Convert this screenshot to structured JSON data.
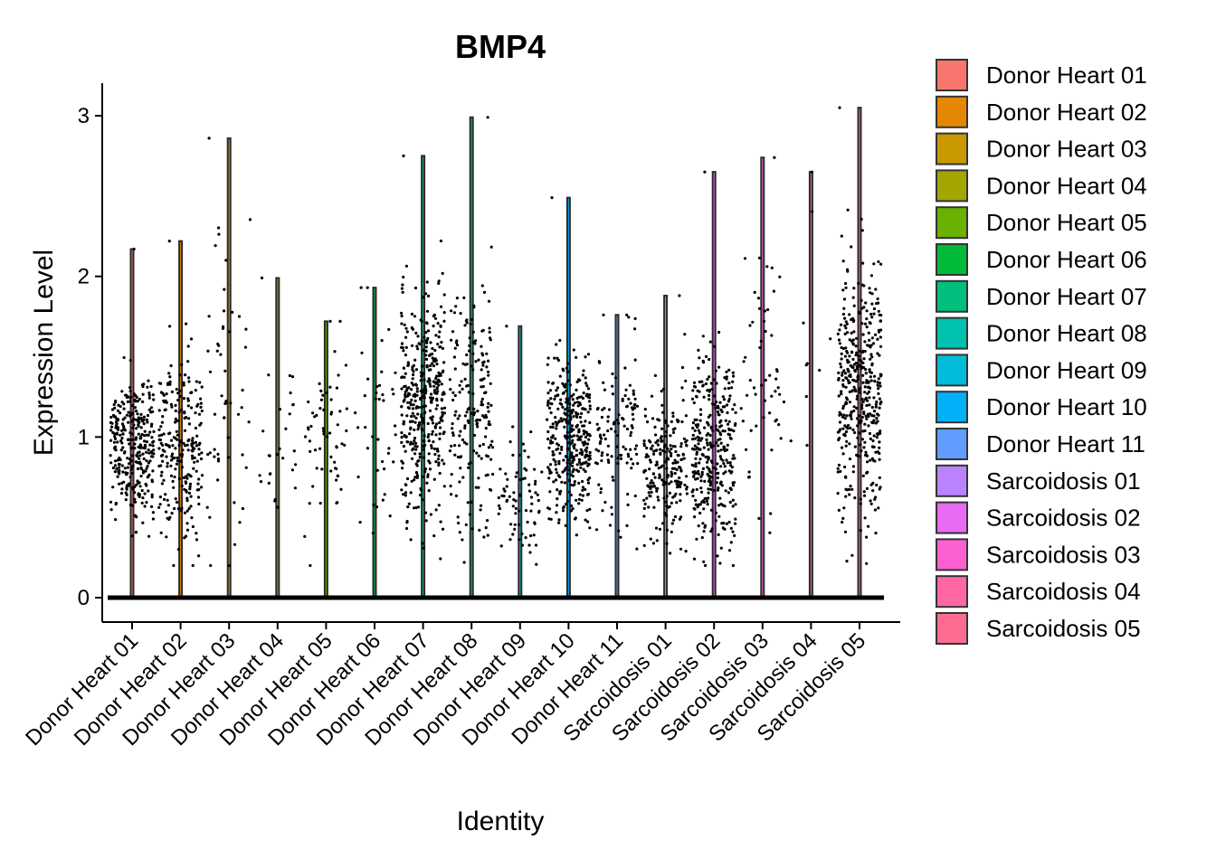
{
  "chart_data": {
    "type": "violin",
    "title": "BMP4",
    "xlabel": "Identity",
    "ylabel": "Expression Level",
    "ylim": [
      -0.15,
      3.2
    ],
    "yticks": [
      0,
      1,
      2,
      3
    ],
    "legend_position": "right",
    "categories": [
      "Donor Heart 01",
      "Donor Heart 02",
      "Donor Heart 03",
      "Donor Heart 04",
      "Donor Heart 05",
      "Donor Heart 06",
      "Donor Heart 07",
      "Donor Heart 08",
      "Donor Heart 09",
      "Donor Heart 10",
      "Donor Heart 11",
      "Sarcoidosis 01",
      "Sarcoidosis 02",
      "Sarcoidosis 03",
      "Sarcoidosis 04",
      "Sarcoidosis 05"
    ],
    "colors": [
      "#F8766D",
      "#E58700",
      "#C99800",
      "#A3A500",
      "#6BB100",
      "#00BA38",
      "#00BF7D",
      "#00C0AF",
      "#00BCD8",
      "#00B0F6",
      "#619CFF",
      "#B983FF",
      "#E76BF3",
      "#FD61D1",
      "#FF67A4",
      "#FF6C91"
    ],
    "series": [
      {
        "name": "Donor Heart 01",
        "max": 2.17,
        "median_nonzero": 0.95,
        "spread": 0.22,
        "n_points": 320
      },
      {
        "name": "Donor Heart 02",
        "max": 2.22,
        "median_nonzero": 0.95,
        "spread": 0.28,
        "n_points": 240
      },
      {
        "name": "Donor Heart 03",
        "max": 2.86,
        "median_nonzero": 1.1,
        "spread": 0.55,
        "n_points": 55
      },
      {
        "name": "Donor Heart 04",
        "max": 1.99,
        "median_nonzero": 1.0,
        "spread": 0.35,
        "n_points": 28
      },
      {
        "name": "Donor Heart 05",
        "max": 1.72,
        "median_nonzero": 1.0,
        "spread": 0.3,
        "n_points": 60
      },
      {
        "name": "Donor Heart 06",
        "max": 1.93,
        "median_nonzero": 1.0,
        "spread": 0.32,
        "n_points": 40
      },
      {
        "name": "Donor Heart 07",
        "max": 2.75,
        "median_nonzero": 1.2,
        "spread": 0.35,
        "n_points": 400
      },
      {
        "name": "Donor Heart 08",
        "max": 2.99,
        "median_nonzero": 1.2,
        "spread": 0.4,
        "n_points": 190
      },
      {
        "name": "Donor Heart 09",
        "max": 1.69,
        "median_nonzero": 0.65,
        "spread": 0.2,
        "n_points": 75
      },
      {
        "name": "Donor Heart 10",
        "max": 2.49,
        "median_nonzero": 1.0,
        "spread": 0.25,
        "n_points": 360
      },
      {
        "name": "Donor Heart 11",
        "max": 1.76,
        "median_nonzero": 1.0,
        "spread": 0.28,
        "n_points": 120
      },
      {
        "name": "Sarcoidosis 01",
        "max": 1.88,
        "median_nonzero": 0.8,
        "spread": 0.22,
        "n_points": 220
      },
      {
        "name": "Sarcoidosis 02",
        "max": 2.65,
        "median_nonzero": 0.9,
        "spread": 0.3,
        "n_points": 330
      },
      {
        "name": "Sarcoidosis 03",
        "max": 2.74,
        "median_nonzero": 1.3,
        "spread": 0.45,
        "n_points": 55
      },
      {
        "name": "Sarcoidosis 04",
        "max": 2.65,
        "median_nonzero": 1.2,
        "spread": 0.5,
        "n_points": 10
      },
      {
        "name": "Sarcoidosis 05",
        "max": 3.05,
        "median_nonzero": 1.3,
        "spread": 0.4,
        "n_points": 420
      }
    ]
  }
}
